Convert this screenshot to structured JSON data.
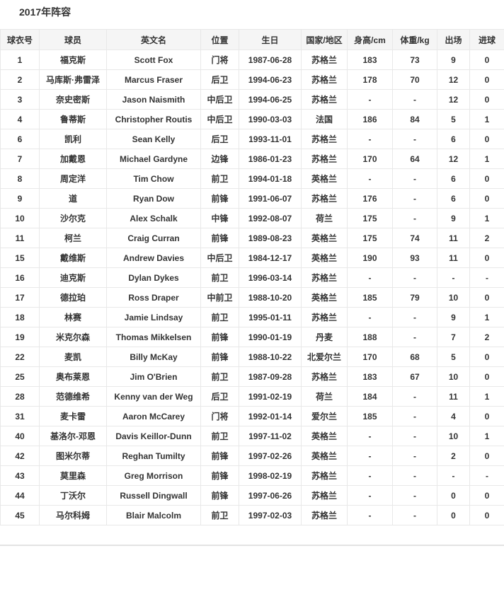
{
  "page": {
    "title": "2017年阵容"
  },
  "colors": {
    "header_bg": "#f5f5f5",
    "border": "#e8e8e8",
    "text": "#333333",
    "divider": "#e3e3e3"
  },
  "table": {
    "headers": [
      "球衣号",
      "球员",
      "英文名",
      "位置",
      "生日",
      "国家/地区",
      "身高/cm",
      "体重/kg",
      "出场",
      "进球"
    ],
    "column_keys": [
      "jersey-number",
      "player-name-cn",
      "player-name-en",
      "position",
      "birthday",
      "country",
      "height-cm",
      "weight-kg",
      "appearances",
      "goals"
    ],
    "rows": [
      [
        "1",
        "福克斯",
        "Scott Fox",
        "门将",
        "1987-06-28",
        "苏格兰",
        "183",
        "73",
        "9",
        "0"
      ],
      [
        "2",
        "马库斯·弗雷泽",
        "Marcus Fraser",
        "后卫",
        "1994-06-23",
        "苏格兰",
        "178",
        "70",
        "12",
        "0"
      ],
      [
        "3",
        "奈史密斯",
        "Jason Naismith",
        "中后卫",
        "1994-06-25",
        "苏格兰",
        "-",
        "-",
        "12",
        "0"
      ],
      [
        "4",
        "鲁蒂斯",
        "Christopher Routis",
        "中后卫",
        "1990-03-03",
        "法国",
        "186",
        "84",
        "5",
        "1"
      ],
      [
        "6",
        "凯利",
        "Sean Kelly",
        "后卫",
        "1993-11-01",
        "苏格兰",
        "-",
        "-",
        "6",
        "0"
      ],
      [
        "7",
        "加戴恩",
        "Michael Gardyne",
        "边锋",
        "1986-01-23",
        "苏格兰",
        "170",
        "64",
        "12",
        "1"
      ],
      [
        "8",
        "周定洋",
        "Tim Chow",
        "前卫",
        "1994-01-18",
        "英格兰",
        "-",
        "-",
        "6",
        "0"
      ],
      [
        "9",
        "道",
        "Ryan Dow",
        "前锋",
        "1991-06-07",
        "苏格兰",
        "176",
        "-",
        "6",
        "0"
      ],
      [
        "10",
        "沙尔克",
        "Alex Schalk",
        "中锋",
        "1992-08-07",
        "荷兰",
        "175",
        "-",
        "9",
        "1"
      ],
      [
        "11",
        "柯兰",
        "Craig Curran",
        "前锋",
        "1989-08-23",
        "英格兰",
        "175",
        "74",
        "11",
        "2"
      ],
      [
        "15",
        "戴维斯",
        "Andrew Davies",
        "中后卫",
        "1984-12-17",
        "英格兰",
        "190",
        "93",
        "11",
        "0"
      ],
      [
        "16",
        "迪克斯",
        "Dylan Dykes",
        "前卫",
        "1996-03-14",
        "苏格兰",
        "-",
        "-",
        "-",
        "-"
      ],
      [
        "17",
        "德拉珀",
        "Ross Draper",
        "中前卫",
        "1988-10-20",
        "英格兰",
        "185",
        "79",
        "10",
        "0"
      ],
      [
        "18",
        "林赛",
        "Jamie Lindsay",
        "前卫",
        "1995-01-11",
        "苏格兰",
        "-",
        "-",
        "9",
        "1"
      ],
      [
        "19",
        "米克尔森",
        "Thomas Mikkelsen",
        "前锋",
        "1990-01-19",
        "丹麦",
        "188",
        "-",
        "7",
        "2"
      ],
      [
        "22",
        "麦凯",
        "Billy McKay",
        "前锋",
        "1988-10-22",
        "北爱尔兰",
        "170",
        "68",
        "5",
        "0"
      ],
      [
        "25",
        "奥布莱恩",
        "Jim O'Brien",
        "前卫",
        "1987-09-28",
        "苏格兰",
        "183",
        "67",
        "10",
        "0"
      ],
      [
        "28",
        "范德维希",
        "Kenny van der Weg",
        "后卫",
        "1991-02-19",
        "荷兰",
        "184",
        "-",
        "11",
        "1"
      ],
      [
        "31",
        "麦卡雷",
        "Aaron McCarey",
        "门将",
        "1992-01-14",
        "爱尔兰",
        "185",
        "-",
        "4",
        "0"
      ],
      [
        "40",
        "基洛尔-邓恩",
        "Davis Keillor-Dunn",
        "前卫",
        "1997-11-02",
        "英格兰",
        "-",
        "-",
        "10",
        "1"
      ],
      [
        "42",
        "图米尔蒂",
        "Reghan Tumilty",
        "前锋",
        "1997-02-26",
        "英格兰",
        "-",
        "-",
        "2",
        "0"
      ],
      [
        "43",
        "莫里森",
        "Greg Morrison",
        "前锋",
        "1998-02-19",
        "苏格兰",
        "-",
        "-",
        "-",
        "-"
      ],
      [
        "44",
        "丁沃尔",
        "Russell Dingwall",
        "前锋",
        "1997-06-26",
        "苏格兰",
        "-",
        "-",
        "0",
        "0"
      ],
      [
        "45",
        "马尔科姆",
        "Blair Malcolm",
        "前卫",
        "1997-02-03",
        "苏格兰",
        "-",
        "-",
        "0",
        "0"
      ]
    ]
  }
}
